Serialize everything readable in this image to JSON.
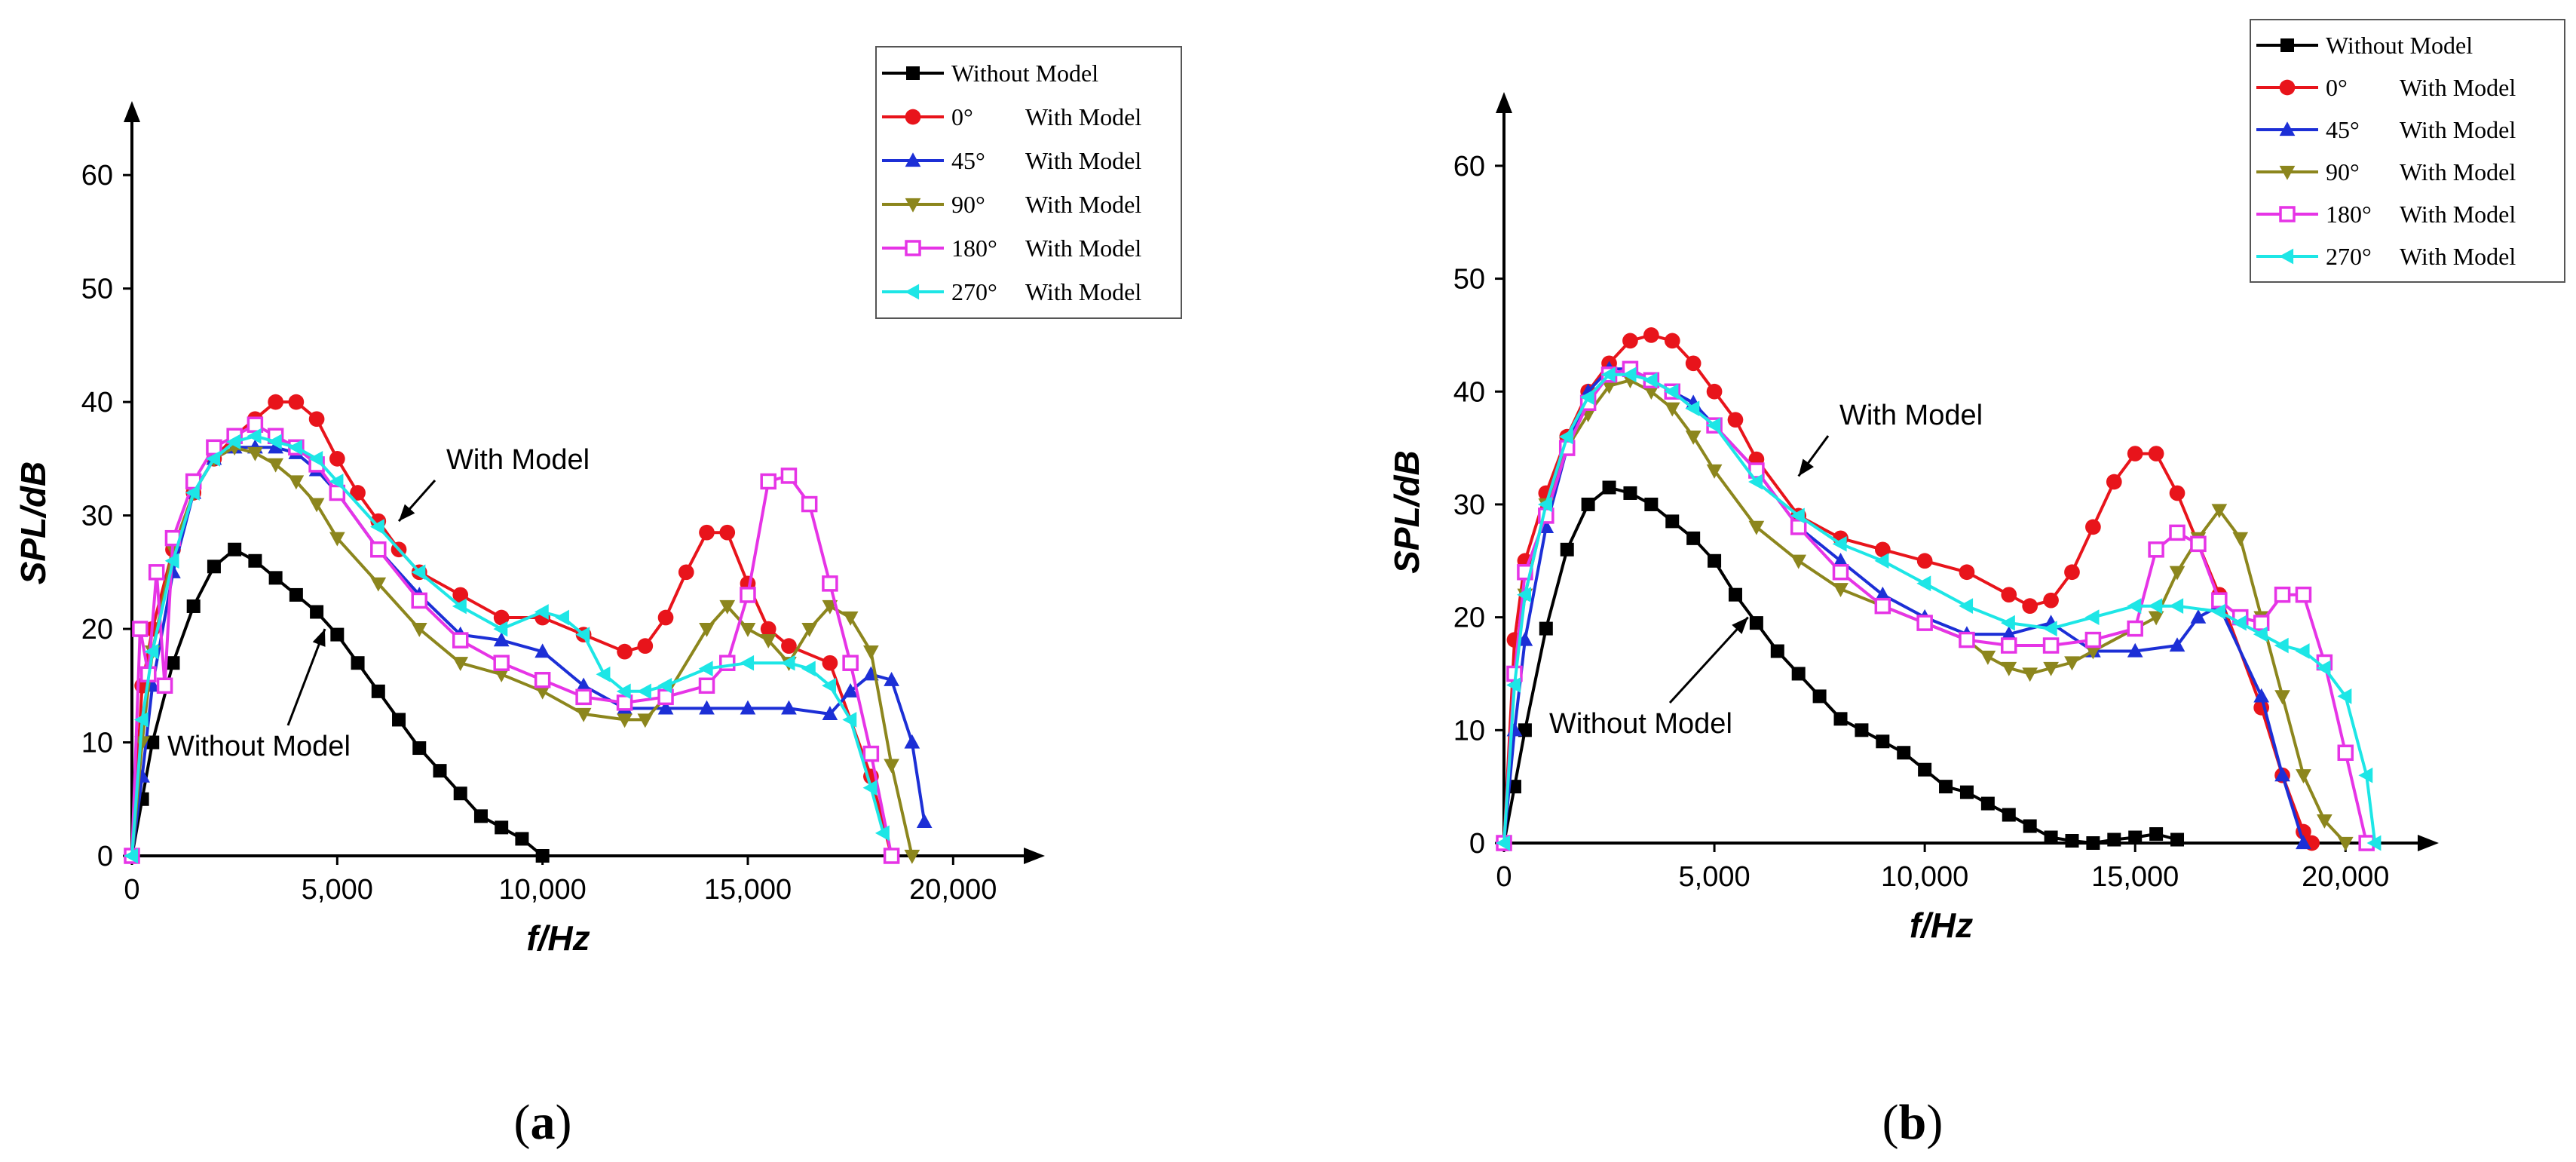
{
  "chart_data": [
    {
      "type": "line",
      "panel_label": "(a)",
      "panel_letter": "a",
      "title": "",
      "xlabel": "f/Hz",
      "ylabel": "SPL/dB",
      "xlim": [
        0,
        21500
      ],
      "ylim": [
        0,
        64
      ],
      "xticks": [
        0,
        5000,
        10000,
        15000,
        20000
      ],
      "xtick_labels": [
        "0",
        "5,000",
        "10,000",
        "15,000",
        "20,000"
      ],
      "yticks": [
        0,
        10,
        20,
        30,
        40,
        50,
        60
      ],
      "ytick_labels": [
        "0",
        "10",
        "20",
        "30",
        "40",
        "50",
        "60"
      ],
      "legend_position": "top-right",
      "series": [
        {
          "name": "Without Model",
          "angle": "",
          "suffix": "Without Model",
          "color": "#000000",
          "marker": "square-filled",
          "x": [
            0,
            250,
            500,
            1000,
            1500,
            2000,
            2500,
            3000,
            3500,
            4000,
            4500,
            5000,
            5500,
            6000,
            6500,
            7000,
            7500,
            8000,
            8500,
            9000,
            9500,
            10000
          ],
          "y": [
            0,
            5,
            10,
            17,
            22,
            25.5,
            27,
            26,
            24.5,
            23,
            21.5,
            19.5,
            17,
            14.5,
            12,
            9.5,
            7.5,
            5.5,
            3.5,
            2.5,
            1.5,
            0
          ]
        },
        {
          "name": "0° With Model",
          "angle": "0°",
          "suffix": "With Model",
          "color": "#e8141b",
          "marker": "circle-filled",
          "x": [
            0,
            250,
            500,
            1000,
            1500,
            2000,
            2500,
            3000,
            3500,
            4000,
            4500,
            5000,
            5500,
            6000,
            6500,
            7000,
            8000,
            9000,
            10000,
            11000,
            12000,
            12500,
            13000,
            13500,
            14000,
            14500,
            15000,
            15500,
            16000,
            17000,
            18000,
            18500
          ],
          "y": [
            0,
            15,
            20,
            27,
            32,
            35,
            37,
            38.5,
            40,
            40,
            38.5,
            35,
            32,
            29.5,
            27,
            25,
            23,
            21,
            21,
            19.5,
            18,
            18.5,
            21,
            25,
            28.5,
            28.5,
            24,
            20,
            18.5,
            17,
            7,
            0
          ]
        },
        {
          "name": "45° With Model",
          "angle": "45°",
          "suffix": "With Model",
          "color": "#1c2fd6",
          "marker": "triangle-up-filled",
          "x": [
            0,
            250,
            500,
            1000,
            1500,
            2000,
            2500,
            3000,
            3500,
            4000,
            4500,
            5000,
            6000,
            7000,
            8000,
            9000,
            10000,
            11000,
            12000,
            13000,
            14000,
            15000,
            16000,
            17000,
            17500,
            18000,
            18500,
            19000,
            19300
          ],
          "y": [
            0,
            7,
            15,
            25,
            32,
            35,
            36,
            36,
            36,
            35.5,
            34,
            32,
            27,
            23,
            19.5,
            19,
            18,
            15,
            13,
            13,
            13,
            13,
            13,
            12.5,
            14.5,
            16,
            15.5,
            10,
            3
          ]
        },
        {
          "name": "90° With Model",
          "angle": "90°",
          "suffix": "With Model",
          "color": "#8c861d",
          "marker": "triangle-down-filled",
          "x": [
            0,
            250,
            500,
            1000,
            1500,
            2000,
            2500,
            3000,
            3500,
            4000,
            4500,
            5000,
            6000,
            7000,
            8000,
            9000,
            10000,
            11000,
            12000,
            12500,
            13000,
            14000,
            14500,
            15000,
            15500,
            16000,
            16500,
            17000,
            17500,
            18000,
            18500,
            19000
          ],
          "y": [
            0,
            10,
            18,
            27,
            32,
            35,
            36,
            35.5,
            34.5,
            33,
            31,
            28,
            24,
            20,
            17,
            16,
            14.5,
            12.5,
            12,
            12,
            14,
            20,
            22,
            20,
            19,
            17,
            20,
            22,
            21,
            18,
            8,
            0
          ]
        },
        {
          "name": "180° With Model",
          "angle": "180°",
          "suffix": "With Model",
          "color": "#e634e6",
          "marker": "square-open",
          "x": [
            0,
            200,
            400,
            600,
            800,
            1000,
            1500,
            2000,
            2500,
            3000,
            3500,
            4000,
            4500,
            5000,
            6000,
            7000,
            8000,
            9000,
            10000,
            11000,
            12000,
            13000,
            14000,
            14500,
            15000,
            15500,
            16000,
            16500,
            17000,
            17500,
            18000,
            18500
          ],
          "y": [
            0,
            20,
            16,
            25,
            15,
            28,
            33,
            36,
            37,
            38,
            37,
            36,
            34.5,
            32,
            27,
            22.5,
            19,
            17,
            15.5,
            14,
            13.5,
            14,
            15,
            17,
            23,
            33,
            33.5,
            31,
            24,
            17,
            9,
            0
          ]
        },
        {
          "name": "270° With Model",
          "angle": "270°",
          "suffix": "With Model",
          "color": "#1de6e6",
          "marker": "triangle-left-filled",
          "x": [
            0,
            250,
            500,
            1000,
            1500,
            2000,
            2500,
            3000,
            3500,
            4000,
            4500,
            5000,
            6000,
            7000,
            8000,
            9000,
            10000,
            10500,
            11000,
            11500,
            12000,
            12500,
            13000,
            14000,
            15000,
            16000,
            16500,
            17000,
            17500,
            18000,
            18300
          ],
          "y": [
            0,
            12,
            18,
            26,
            32,
            35,
            36.5,
            37,
            36.5,
            36,
            35,
            33,
            29,
            25,
            22,
            20,
            21.5,
            21,
            19.5,
            16,
            14.5,
            14.5,
            15,
            16.5,
            17,
            17,
            16.5,
            15,
            12,
            6,
            2
          ]
        }
      ],
      "annotations": [
        {
          "text": "With Model",
          "target": [
            6500,
            29.5
          ]
        },
        {
          "text": "Without Model",
          "target": [
            4700,
            20
          ]
        }
      ]
    },
    {
      "type": "line",
      "panel_label": "(b)",
      "panel_letter": "b",
      "title": "",
      "xlabel": "f/Hz",
      "ylabel": "SPL/dB",
      "xlim": [
        0,
        21500
      ],
      "ylim": [
        0,
        64
      ],
      "xticks": [
        0,
        5000,
        10000,
        15000,
        20000
      ],
      "xtick_labels": [
        "0",
        "5,000",
        "10,000",
        "15,000",
        "20,000"
      ],
      "yticks": [
        0,
        10,
        20,
        30,
        40,
        50,
        60
      ],
      "ytick_labels": [
        "0",
        "10",
        "20",
        "30",
        "40",
        "50",
        "60"
      ],
      "legend_position": "top-right",
      "series": [
        {
          "name": "Without Model",
          "angle": "",
          "suffix": "Without Model",
          "color": "#000000",
          "marker": "square-filled",
          "x": [
            0,
            250,
            500,
            1000,
            1500,
            2000,
            2500,
            3000,
            3500,
            4000,
            4500,
            5000,
            5500,
            6000,
            6500,
            7000,
            7500,
            8000,
            8500,
            9000,
            9500,
            10000,
            10500,
            11000,
            11500,
            12000,
            12500,
            13000,
            13500,
            14000,
            14500,
            15000,
            15500,
            16000
          ],
          "y": [
            0,
            5,
            10,
            19,
            26,
            30,
            31.5,
            31,
            30,
            28.5,
            27,
            25,
            22,
            19.5,
            17,
            15,
            13,
            11,
            10,
            9,
            8,
            6.5,
            5,
            4.5,
            3.5,
            2.5,
            1.5,
            0.5,
            0.2,
            0,
            0.3,
            0.5,
            0.8,
            0.3
          ]
        },
        {
          "name": "0° With Model",
          "angle": "0°",
          "suffix": "With Model",
          "color": "#e8141b",
          "marker": "circle-filled",
          "x": [
            0,
            250,
            500,
            1000,
            1500,
            2000,
            2500,
            3000,
            3500,
            4000,
            4500,
            5000,
            5500,
            6000,
            7000,
            8000,
            9000,
            10000,
            11000,
            12000,
            12500,
            13000,
            13500,
            14000,
            14500,
            15000,
            15500,
            16000,
            17000,
            18000,
            18500,
            19000,
            19200
          ],
          "y": [
            0,
            18,
            25,
            31,
            36,
            40,
            42.5,
            44.5,
            45,
            44.5,
            42.5,
            40,
            37.5,
            34,
            29,
            27,
            26,
            25,
            24,
            22,
            21,
            21.5,
            24,
            28,
            32,
            34.5,
            34.5,
            31,
            22,
            12,
            6,
            1,
            0
          ]
        },
        {
          "name": "45° With Model",
          "angle": "45°",
          "suffix": "With Model",
          "color": "#1c2fd6",
          "marker": "triangle-up-filled",
          "x": [
            0,
            250,
            500,
            1000,
            1500,
            2000,
            2500,
            3000,
            3500,
            4000,
            4500,
            5000,
            6000,
            7000,
            8000,
            9000,
            10000,
            11000,
            12000,
            13000,
            14000,
            15000,
            16000,
            16500,
            17000,
            18000,
            18500,
            19000
          ],
          "y": [
            0,
            10,
            18,
            28,
            35,
            40,
            42,
            42,
            41,
            40,
            39,
            37,
            33,
            28,
            25,
            22,
            20,
            18.5,
            18.5,
            19.5,
            17,
            17,
            17.5,
            20,
            21,
            13,
            6,
            0
          ]
        },
        {
          "name": "90° With Model",
          "angle": "90°",
          "suffix": "With Model",
          "color": "#8c861d",
          "marker": "triangle-down-filled",
          "x": [
            0,
            250,
            500,
            1000,
            1500,
            2000,
            2500,
            3000,
            3500,
            4000,
            4500,
            5000,
            6000,
            7000,
            8000,
            9000,
            10000,
            11000,
            11500,
            12000,
            12500,
            13000,
            13500,
            14000,
            15000,
            15500,
            16000,
            16500,
            17000,
            17500,
            18000,
            18500,
            19000,
            19500,
            20000
          ],
          "y": [
            0,
            15,
            22,
            30,
            35,
            38,
            40.5,
            41,
            40,
            38.5,
            36,
            33,
            28,
            25,
            22.5,
            21,
            19.5,
            18,
            16.5,
            15.5,
            15,
            15.5,
            16,
            17,
            19,
            20,
            24,
            27,
            29.5,
            27,
            20,
            13,
            6,
            2,
            0
          ]
        },
        {
          "name": "180° With Model",
          "angle": "180°",
          "suffix": "With Model",
          "color": "#e634e6",
          "marker": "square-open",
          "x": [
            0,
            250,
            500,
            1000,
            1500,
            2000,
            2500,
            3000,
            3500,
            4000,
            5000,
            6000,
            7000,
            8000,
            9000,
            10000,
            11000,
            12000,
            13000,
            14000,
            15000,
            15500,
            16000,
            16500,
            17000,
            17500,
            18000,
            18500,
            19000,
            19500,
            20000,
            20500
          ],
          "y": [
            0,
            15,
            24,
            29,
            35,
            39,
            41.5,
            42,
            41,
            40,
            37,
            33,
            28,
            24,
            21,
            19.5,
            18,
            17.5,
            17.5,
            18,
            19,
            26,
            27.5,
            26.5,
            21.5,
            20,
            19.5,
            22,
            22,
            16,
            8,
            0
          ]
        },
        {
          "name": "270° With Model",
          "angle": "270°",
          "suffix": "With Model",
          "color": "#1de6e6",
          "marker": "triangle-left-filled",
          "x": [
            0,
            250,
            500,
            1000,
            1500,
            2000,
            2500,
            3000,
            3500,
            4000,
            4500,
            5000,
            6000,
            7000,
            8000,
            9000,
            10000,
            11000,
            12000,
            13000,
            14000,
            15000,
            15500,
            16000,
            17000,
            17500,
            18000,
            18500,
            19000,
            19500,
            20000,
            20500,
            20700
          ],
          "y": [
            0,
            14,
            22,
            30,
            36,
            39.5,
            41.5,
            41.5,
            41,
            40,
            38.5,
            37,
            32,
            29,
            26.5,
            25,
            23,
            21,
            19.5,
            19,
            20,
            21,
            21,
            21,
            20.5,
            19.5,
            18.5,
            17.5,
            17,
            15.5,
            13,
            6,
            0
          ]
        }
      ],
      "annotations": [
        {
          "text": "With Model",
          "target": [
            7000,
            32.5
          ]
        },
        {
          "text": "Without Model",
          "target": [
            5800,
            20
          ]
        }
      ]
    }
  ]
}
